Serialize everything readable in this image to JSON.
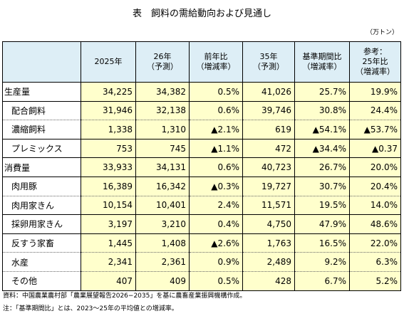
{
  "header": {
    "title": "表　飼料の需給動向および見通し",
    "unit": "（万トン）"
  },
  "table": {
    "columns": [
      [],
      [
        "2025年"
      ],
      [
        "26年",
        "（予測）"
      ],
      [
        "前年比",
        "（増減率）"
      ],
      [
        "35年",
        "（予測）"
      ],
      [
        "基準期間比",
        "（増減率）"
      ],
      [
        "参考：",
        "25年比",
        "（増減率）"
      ]
    ],
    "groups": [
      [
        {
          "label": "生産量",
          "cells": [
            "34,225",
            "34,382",
            "0.5%",
            "41,026",
            "25.7%",
            "19.9%"
          ]
        }
      ],
      [
        {
          "label": "配合飼料",
          "cells": [
            "31,946",
            "32,138",
            "0.6%",
            "39,746",
            "30.8%",
            "24.4%"
          ]
        },
        {
          "label": "濃縮飼料",
          "cells": [
            "1,338",
            "1,310",
            "▲2.1%",
            "619",
            "▲54.1%",
            "▲53.7%"
          ]
        }
      ],
      [
        {
          "label": "プレミックス",
          "cells": [
            "753",
            "745",
            "▲1.1%",
            "472",
            "▲34.4%",
            "▲0.37"
          ]
        }
      ],
      [
        {
          "label": "消費量",
          "cells": [
            "33,933",
            "34,131",
            "0.6%",
            "40,723",
            "26.7%",
            "20.0%"
          ]
        }
      ],
      [
        {
          "label": "肉用豚",
          "cells": [
            "16,389",
            "16,342",
            "▲0.3%",
            "19,727",
            "30.7%",
            "20.4%"
          ]
        },
        {
          "label": "肉用家きん",
          "cells": [
            "10,154",
            "10,401",
            "2.4%",
            "11,571",
            "19.5%",
            "14.0%"
          ]
        }
      ],
      [
        {
          "label": "採卵用家きん",
          "cells": [
            "3,197",
            "3,210",
            "0.4%",
            "4,750",
            "47.9%",
            "48.6%"
          ]
        }
      ],
      [
        {
          "label": "反すう家畜",
          "cells": [
            "1,445",
            "1,408",
            "▲2.6%",
            "1,763",
            "16.5%",
            "22.0%"
          ]
        },
        {
          "label": "水産",
          "cells": [
            "2,341",
            "2,361",
            "0.9%",
            "2,489",
            "9.2%",
            "6.3%"
          ]
        },
        {
          "label": "その他",
          "cells": [
            "407",
            "409",
            "0.5%",
            "428",
            "6.7%",
            "5.2%"
          ]
        }
      ]
    ]
  },
  "notes": [
    "資料：中国農業農村部「農業展望報告2026−2035」を基に農畜産業振興機構作成。",
    "注：「基準期間比」とは、2023〜25年の平均値との増減率。"
  ]
}
